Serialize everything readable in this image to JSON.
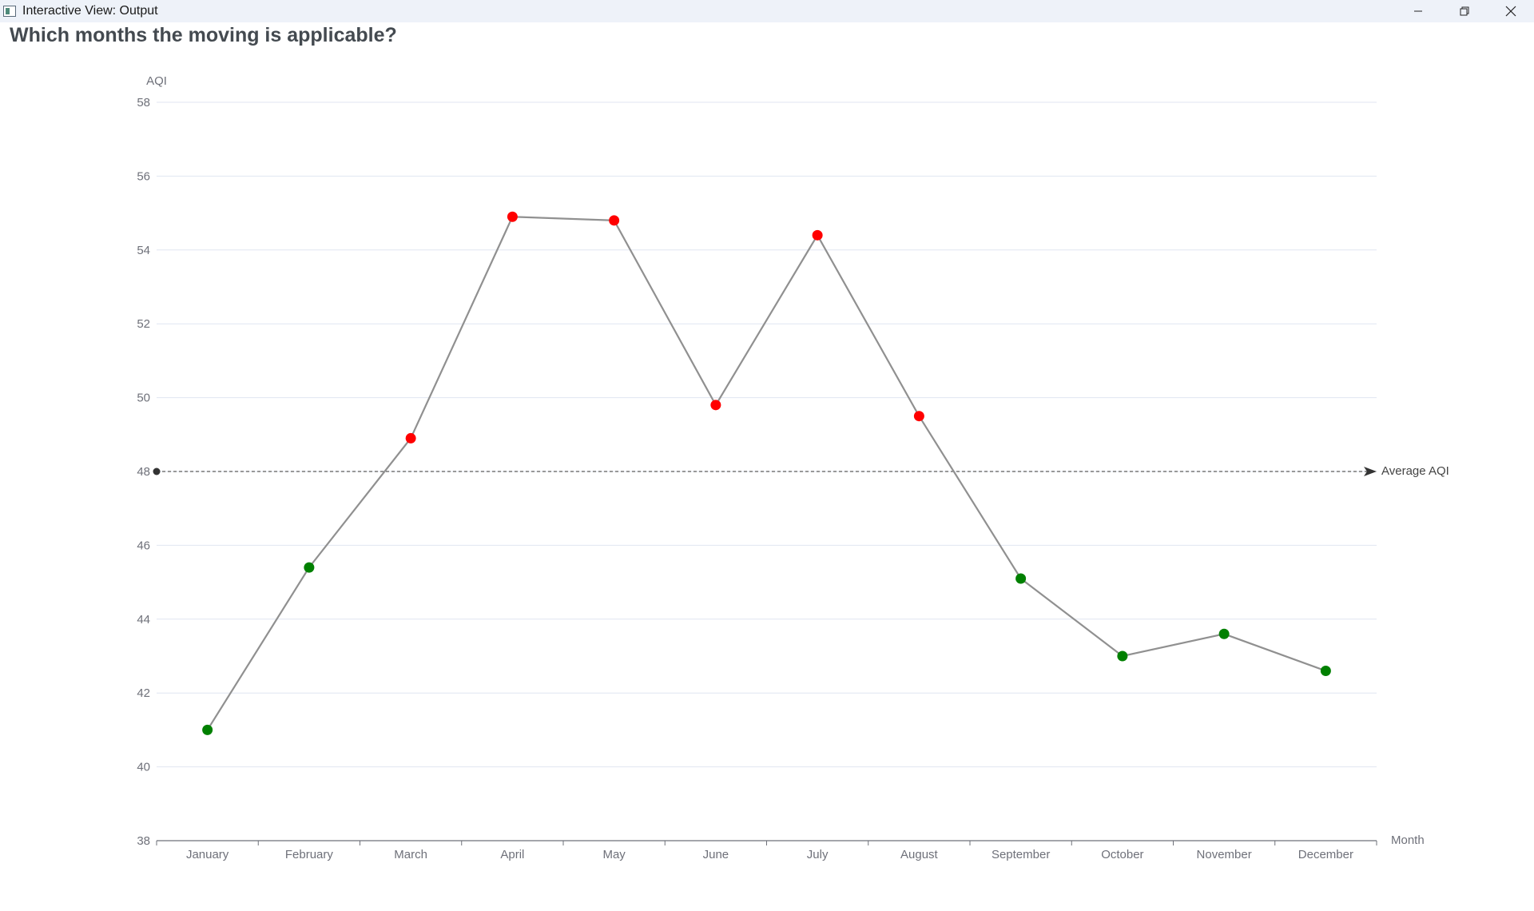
{
  "window": {
    "title": "Interactive View: Output",
    "icons": {
      "app": "app-icon",
      "minimize": "minimize-icon",
      "restore": "restore-icon",
      "close": "close-icon"
    }
  },
  "question": "Which months the moving is applicable?",
  "chart_data": {
    "type": "line",
    "title": "",
    "xlabel": "Month",
    "ylabel": "AQI",
    "categories": [
      "January",
      "February",
      "March",
      "April",
      "May",
      "June",
      "July",
      "August",
      "September",
      "October",
      "November",
      "December"
    ],
    "series": [
      {
        "values": [
          41.0,
          45.4,
          48.9,
          54.9,
          54.8,
          49.8,
          54.4,
          49.5,
          45.1,
          43.0,
          43.6,
          42.6
        ]
      }
    ],
    "point_colors": [
      "#008000",
      "#008000",
      "#ff0000",
      "#ff0000",
      "#ff0000",
      "#ff0000",
      "#ff0000",
      "#ff0000",
      "#008000",
      "#008000",
      "#008000",
      "#008000"
    ],
    "line_color": "#909090",
    "ylim": [
      38,
      58
    ],
    "ytick_step": 2,
    "grid": true,
    "mark_line": {
      "label": "Average AQI",
      "value": 48.0
    }
  }
}
